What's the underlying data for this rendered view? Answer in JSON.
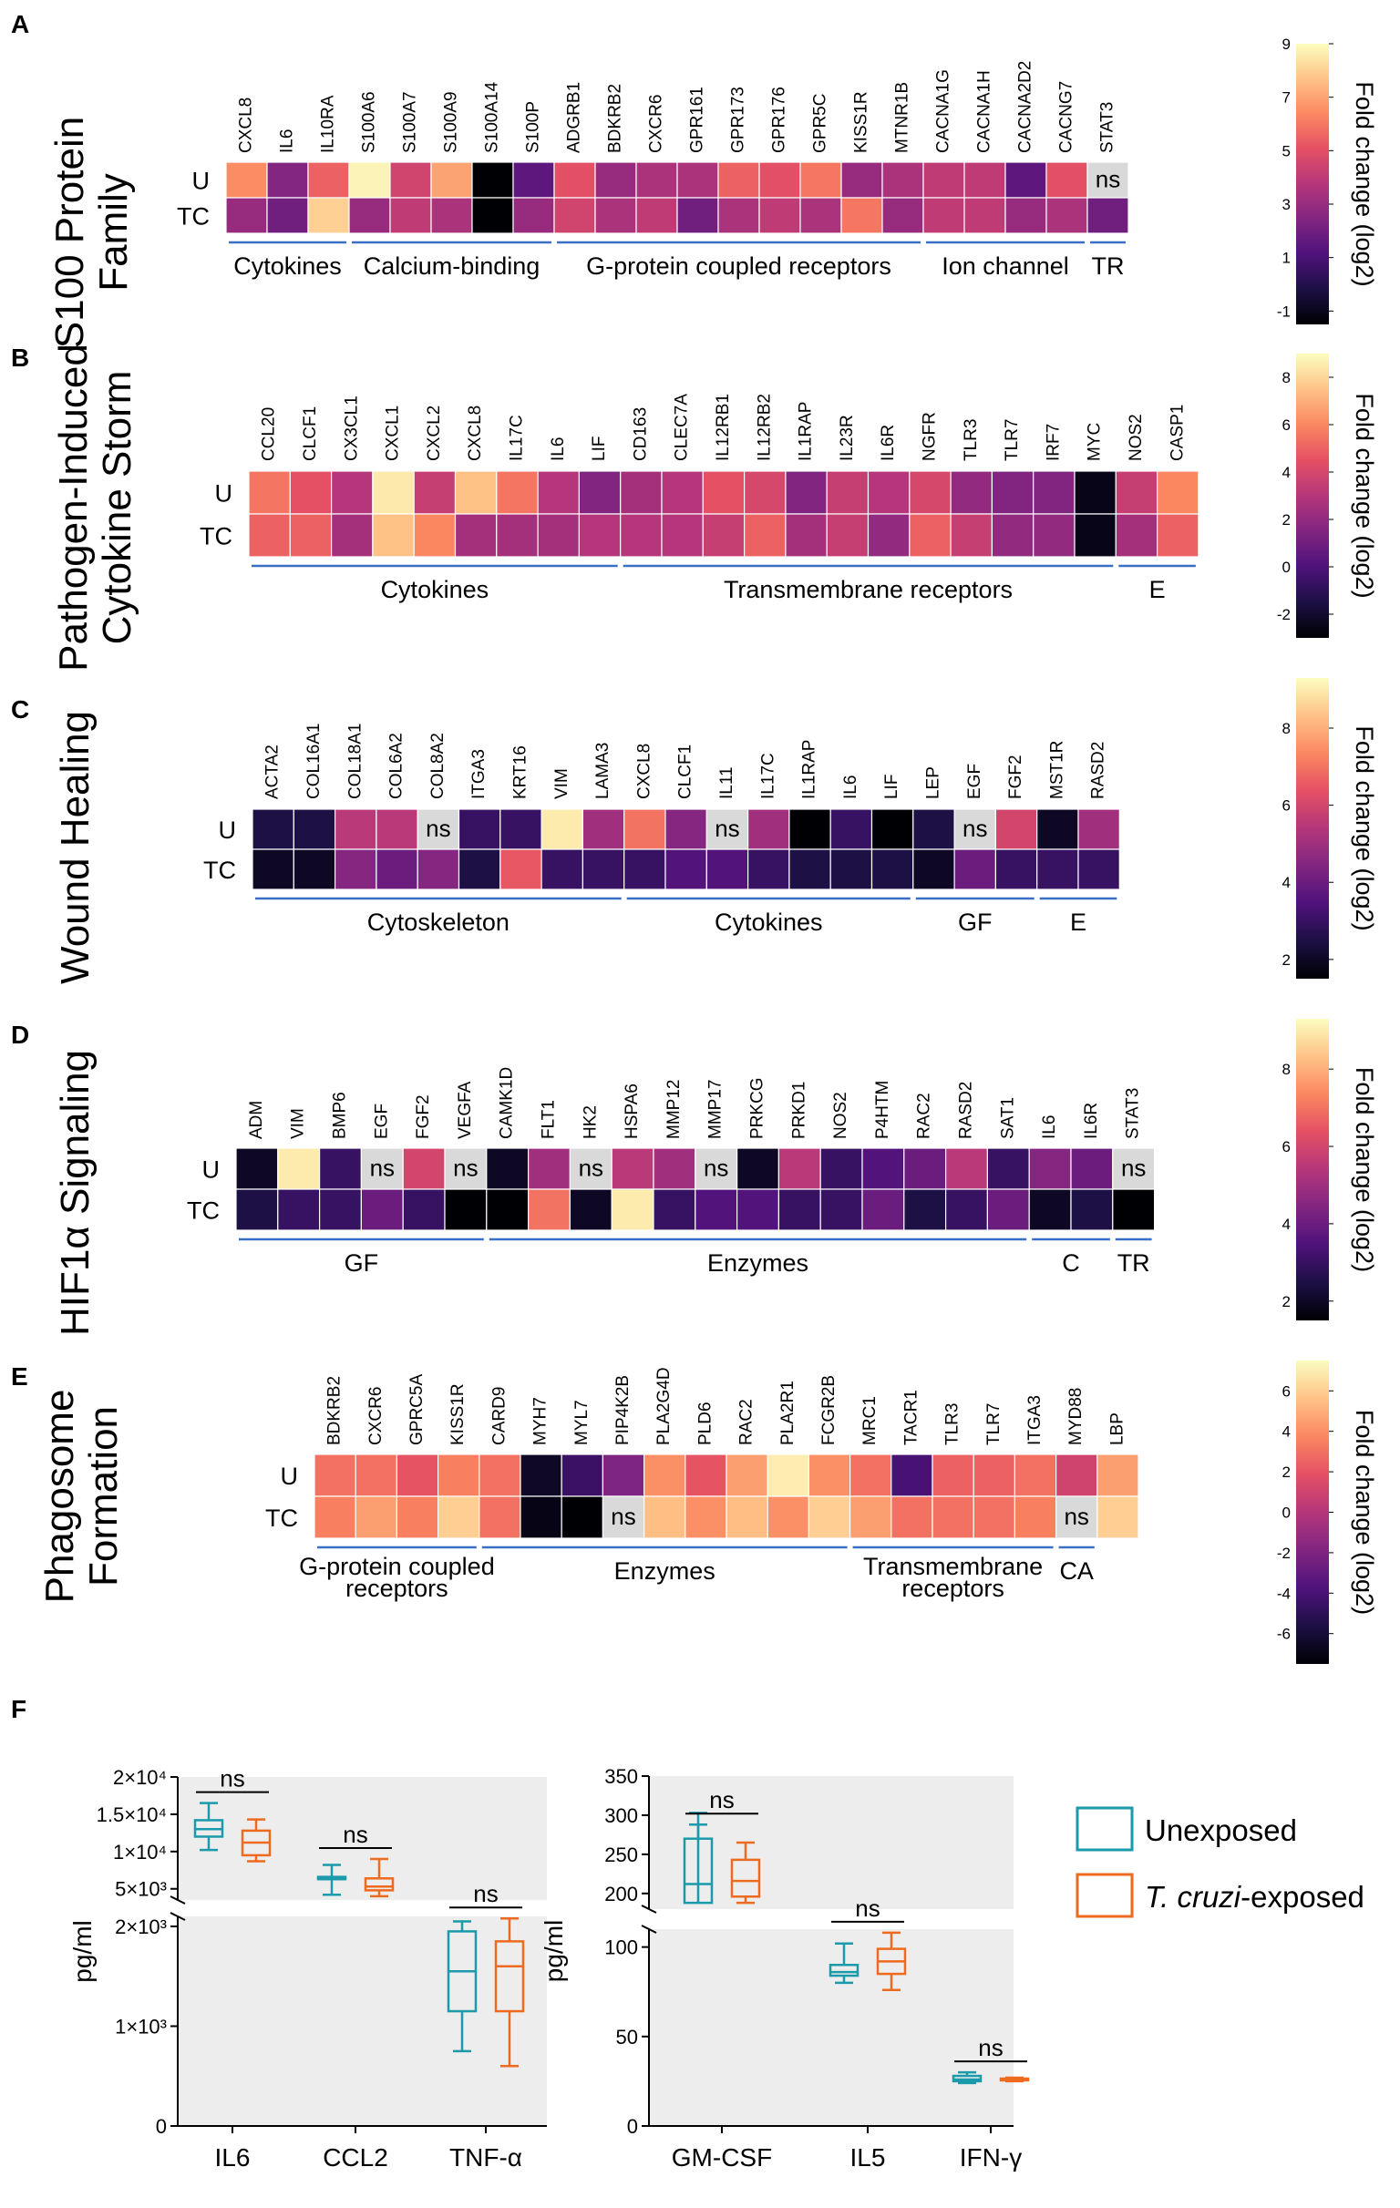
{
  "ns_label": "ns",
  "colorbar_label": "Fold change (log2)",
  "panels": [
    {
      "letter": "A",
      "title": [
        "S100 Protein",
        "Family"
      ],
      "rows": [
        "U",
        "TC"
      ],
      "genes": [
        "CXCL8",
        "IL6",
        "IL10RA",
        "S100A6",
        "S100A7",
        "S100A9",
        "S100A14",
        "S100P",
        "ADGRB1",
        "BDKRB2",
        "CXCR6",
        "GPR161",
        "GPR173",
        "GPR176",
        "GPR5C",
        "KISS1R",
        "MTNR1B",
        "CACNA1G",
        "CACNA1H",
        "CACNA2D2",
        "CACNG7",
        "STAT3"
      ],
      "values": {
        "U": [
          6.5,
          2.5,
          5.5,
          8.8,
          4.5,
          7.0,
          -1.5,
          1.5,
          5.0,
          3.0,
          3.5,
          3.5,
          5.5,
          5.0,
          6.0,
          3.0,
          3.5,
          4.0,
          4.0,
          1.5,
          5.0,
          null
        ],
        "TC": [
          3.0,
          2.0,
          8.0,
          3.0,
          4.0,
          3.5,
          -1.5,
          3.0,
          4.5,
          3.5,
          4.0,
          2.0,
          3.5,
          4.0,
          3.5,
          6.0,
          3.0,
          4.0,
          4.0,
          3.0,
          3.5,
          2.0
        ]
      },
      "range": [
        -1.5,
        9
      ],
      "ticks": [
        9,
        7,
        5,
        3,
        1,
        -1
      ],
      "groups": [
        {
          "label": "Cytokines",
          "from": 0,
          "to": 2
        },
        {
          "label": "Calcium-binding",
          "from": 3,
          "to": 7
        },
        {
          "label": "G-protein coupled receptors",
          "from": 8,
          "to": 16
        },
        {
          "label": "Ion channel",
          "from": 17,
          "to": 20
        },
        {
          "label": "TR",
          "from": 21,
          "to": 21
        }
      ]
    },
    {
      "letter": "B",
      "title": [
        "Pathogen-Induced",
        "Cytokine Storm"
      ],
      "rows": [
        "U",
        "TC"
      ],
      "genes": [
        "CCL20",
        "CLCF1",
        "CX3CL1",
        "CXCL1",
        "CXCL2",
        "CXCL8",
        "IL17C",
        "IL6",
        "LIF",
        "CD163",
        "CLEC7A",
        "IL12RB1",
        "IL12RB2",
        "IL1RAP",
        "IL23R",
        "IL6R",
        "NGFR",
        "TLR3",
        "TLR7",
        "IRF7",
        "MYC",
        "NOS2",
        "CASP1"
      ],
      "values": {
        "U": [
          5.5,
          4.5,
          3.0,
          8.5,
          3.5,
          7.5,
          5.5,
          3.0,
          1.5,
          2.5,
          3.0,
          4.5,
          4.0,
          1.5,
          3.5,
          3.0,
          4.0,
          2.0,
          1.5,
          1.5,
          -2.5,
          3.5,
          6.0
        ],
        "TC": [
          5.0,
          5.0,
          2.5,
          7.5,
          6.0,
          2.5,
          2.5,
          2.5,
          3.0,
          3.0,
          3.0,
          3.5,
          5.0,
          2.5,
          3.5,
          2.0,
          5.0,
          3.5,
          2.0,
          2.0,
          -2.5,
          2.5,
          5.0
        ]
      },
      "range": [
        -3,
        9
      ],
      "ticks": [
        8,
        6,
        4,
        2,
        0,
        -2
      ],
      "groups": [
        {
          "label": "Cytokines",
          "from": 0,
          "to": 8
        },
        {
          "label": "Transmembrane receptors",
          "from": 9,
          "to": 20
        },
        {
          "label": "E",
          "from": 21,
          "to": 22
        }
      ]
    },
    {
      "letter": "C",
      "title": [
        "Wound Healing"
      ],
      "rows": [
        "U",
        "TC"
      ],
      "genes": [
        "ACTA2",
        "COL16A1",
        "COL18A1",
        "COL6A2",
        "COL8A2",
        "ITGA3",
        "KRT16",
        "VIM",
        "LAMA3",
        "CXCL8",
        "CLCF1",
        "IL11",
        "IL17C",
        "IL1RAP",
        "IL6",
        "LIF",
        "LEP",
        "EGF",
        "FGF2",
        "MST1R",
        "RASD2"
      ],
      "values": {
        "U": [
          2.5,
          2.5,
          5.5,
          5.5,
          null,
          3.0,
          3.0,
          9.0,
          5.0,
          7.0,
          4.5,
          null,
          5.0,
          1.5,
          3.0,
          1.5,
          2.5,
          null,
          6.0,
          2.0,
          5.0
        ],
        "TC": [
          2.0,
          2.0,
          4.5,
          4.0,
          4.5,
          2.5,
          6.5,
          3.0,
          3.0,
          3.0,
          3.5,
          3.5,
          3.0,
          2.5,
          2.5,
          2.5,
          2.0,
          4.0,
          3.0,
          3.0,
          3.0
        ]
      },
      "range": [
        1.5,
        9.3
      ],
      "ticks": [
        8,
        6,
        4,
        2
      ],
      "groups": [
        {
          "label": "Cytoskeleton",
          "from": 0,
          "to": 8
        },
        {
          "label": "Cytokines",
          "from": 9,
          "to": 15
        },
        {
          "label": "GF",
          "from": 16,
          "to": 18
        },
        {
          "label": "E",
          "from": 19,
          "to": 20
        }
      ]
    },
    {
      "letter": "D",
      "title": [
        "HIF1α Signaling"
      ],
      "rows": [
        "U",
        "TC"
      ],
      "genes": [
        "ADM",
        "VIM",
        "BMP6",
        "EGF",
        "FGF2",
        "VEGFA",
        "CAMK1D",
        "FLT1",
        "HK2",
        "HSPA6",
        "MMP12",
        "MMP17",
        "PRKCG",
        "PRKD1",
        "NOS2",
        "P4HTM",
        "RAC2",
        "RASD2",
        "SAT1",
        "IL6",
        "IL6R",
        "STAT3"
      ],
      "values": {
        "U": [
          2.0,
          9.0,
          3.0,
          null,
          6.0,
          null,
          2.0,
          5.0,
          null,
          5.5,
          5.0,
          null,
          2.0,
          5.5,
          3.0,
          3.5,
          4.0,
          5.5,
          3.0,
          4.5,
          4.0,
          null
        ],
        "TC": [
          2.5,
          3.0,
          3.0,
          4.0,
          3.0,
          1.5,
          1.5,
          7.0,
          2.0,
          9.0,
          3.0,
          3.5,
          3.5,
          3.0,
          3.0,
          4.0,
          2.5,
          3.0,
          4.0,
          2.0,
          2.5,
          1.5
        ]
      },
      "range": [
        1.5,
        9.3
      ],
      "ticks": [
        8,
        6,
        4,
        2
      ],
      "groups": [
        {
          "label": "GF",
          "from": 0,
          "to": 5
        },
        {
          "label": "Enzymes",
          "from": 6,
          "to": 18
        },
        {
          "label": "C",
          "from": 19,
          "to": 20
        },
        {
          "label": "TR",
          "from": 21,
          "to": 21
        }
      ]
    },
    {
      "letter": "E",
      "title": [
        "Phagosome",
        "Formation"
      ],
      "rows": [
        "U",
        "TC"
      ],
      "genes": [
        "BDKRB2",
        "CXCR6",
        "GPRC5A",
        "KISS1R",
        "CARD9",
        "MYH7",
        "MYL7",
        "PIP4K2B",
        "PLA2G4D",
        "PLD6",
        "RAC2",
        "PLA2R1",
        "FCGR2B",
        "MRC1",
        "TACR1",
        "TLR3",
        "TLR7",
        "ITGA3",
        "MYD88",
        "LBP"
      ],
      "values": {
        "U": [
          3.0,
          3.0,
          2.0,
          3.5,
          3.0,
          -6.5,
          -4.5,
          -2.0,
          4.0,
          2.0,
          4.5,
          7.0,
          4.0,
          3.0,
          -4.0,
          2.5,
          2.5,
          3.0,
          1.0,
          4.5
        ],
        "TC": [
          3.5,
          4.5,
          3.5,
          6.0,
          3.0,
          -7.0,
          -7.5,
          null,
          5.5,
          4.0,
          5.5,
          4.0,
          6.0,
          4.5,
          3.0,
          3.0,
          3.0,
          3.5,
          null,
          6.0
        ]
      },
      "range": [
        -7.5,
        7.5
      ],
      "ticks": [
        6,
        4,
        2,
        0,
        -2,
        -4,
        -6
      ],
      "groups": [
        {
          "label": "G-protein coupled receptors",
          "from": 0,
          "to": 3
        },
        {
          "label": "Enzymes",
          "from": 4,
          "to": 12
        },
        {
          "label": "Transmembrane receptors",
          "from": 13,
          "to": 17
        },
        {
          "label": "CA",
          "from": 18,
          "to": 18
        }
      ]
    }
  ],
  "panelF": {
    "letter": "F",
    "ylabel": "pg/ml",
    "legend": {
      "unexposed": "Unexposed",
      "exposed_italic": "T. cruzi",
      "exposed_suffix": "-exposed",
      "unexposed_color": "#1a9aaa",
      "exposed_color": "#ee6a1f"
    },
    "plot1": {
      "categories": [
        "IL6",
        "CCL2",
        "TNF-α"
      ],
      "upper_ticks": [
        "2×10⁴",
        "1.5×10⁴",
        "1×10⁴",
        "5×10³"
      ],
      "lower_ticks": [
        "2×10³",
        "1×10³",
        "0"
      ],
      "series": [
        {
          "name": "Unexposed",
          "boxes": [
            {
              "min": 10200,
              "q1": 12000,
              "med": 13000,
              "q3": 14200,
              "max": 16500
            },
            {
              "min": 4200,
              "q1": 6300,
              "med": 6300,
              "q3": 6600,
              "max": 8200
            },
            {
              "min": 750,
              "q1": 1150,
              "med": 1550,
              "q3": 1950,
              "max": 2050
            }
          ]
        },
        {
          "name": "T. cruzi-exposed",
          "boxes": [
            {
              "min": 8700,
              "q1": 9500,
              "med": 11200,
              "q3": 12800,
              "max": 14300
            },
            {
              "min": 4000,
              "q1": 4800,
              "med": 5300,
              "q3": 6400,
              "max": 9000
            },
            {
              "min": 600,
              "q1": 1150,
              "med": 1600,
              "q3": 1850,
              "max": 2080
            }
          ]
        }
      ]
    },
    "plot2": {
      "categories": [
        "GM-CSF",
        "IL5",
        "IFN-γ"
      ],
      "upper_ticks": [
        "350",
        "300",
        "250",
        "200"
      ],
      "lower_ticks": [
        "100",
        "50",
        "0"
      ],
      "series": [
        {
          "name": "Unexposed",
          "boxes": [
            {
              "min": 175,
              "q1": 188,
              "med": 212,
              "q3": 270,
              "max": 288
            },
            {
              "min": 80,
              "q1": 84,
              "med": 86,
              "q3": 90,
              "max": 102
            },
            {
              "min": 24,
              "q1": 25,
              "med": 26,
              "q3": 28,
              "max": 30
            }
          ]
        },
        {
          "name": "T. cruzi-exposed",
          "boxes": [
            {
              "min": 188,
              "q1": 196,
              "med": 216,
              "q3": 243,
              "max": 265
            },
            {
              "min": 76,
              "q1": 85,
              "med": 92,
              "q3": 99,
              "max": 108
            },
            {
              "min": 25,
              "q1": 25.5,
              "med": 26,
              "q3": 26.5,
              "max": 27
            }
          ]
        }
      ]
    }
  }
}
